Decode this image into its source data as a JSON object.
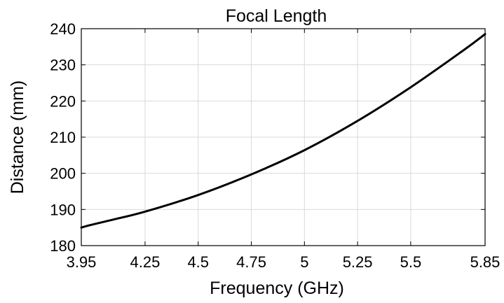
{
  "chart_data": {
    "type": "line",
    "title": "Focal Length",
    "xlabel": "Frequency (GHz)",
    "ylabel": "Distance (mm)",
    "xlim": [
      3.95,
      5.85
    ],
    "ylim": [
      180,
      240
    ],
    "x_ticks": [
      3.95,
      4.25,
      4.5,
      4.75,
      5,
      5.25,
      5.5,
      5.85
    ],
    "x_tick_labels": [
      "3.95",
      "4.25",
      "4.5",
      "4.75",
      "5",
      "5.25",
      "5.5",
      "5.85"
    ],
    "y_ticks": [
      180,
      190,
      200,
      210,
      220,
      230,
      240
    ],
    "y_tick_labels": [
      "180",
      "190",
      "200",
      "210",
      "220",
      "230",
      "240"
    ],
    "grid": true,
    "line_color": "#000000",
    "series": [
      {
        "x": [
          3.95,
          4.0,
          4.1,
          4.25,
          4.5,
          4.75,
          5.0,
          5.25,
          5.5,
          5.75,
          5.85
        ],
        "y": [
          185.0,
          185.8,
          187.2,
          189.4,
          194.0,
          199.7,
          206.4,
          214.5,
          223.8,
          234.1,
          238.5
        ]
      }
    ]
  }
}
